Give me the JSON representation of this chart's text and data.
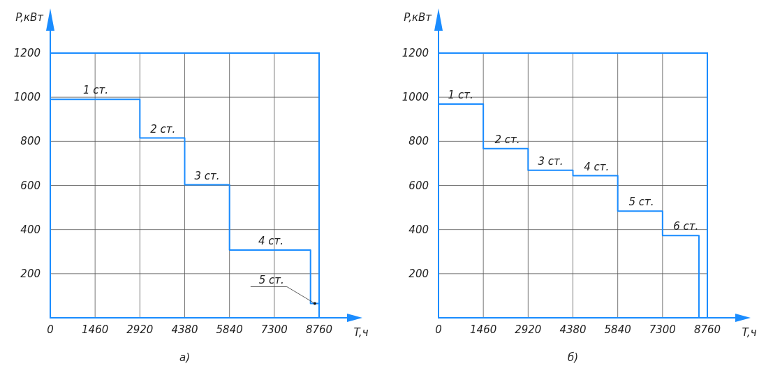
{
  "chart_data": [
    {
      "type": "step",
      "title": "а)",
      "xlabel": "T,ч",
      "ylabel": "P,кВт",
      "color": "#1a8cff",
      "grid": true,
      "x": [
        0,
        2920,
        4380,
        5840,
        8480,
        8760
      ],
      "values": [
        990,
        815,
        603,
        307,
        65,
        0
      ],
      "xlim": [
        0,
        8760
      ],
      "ylim": [
        0,
        1200
      ],
      "xticks": [
        0,
        1460,
        2920,
        4380,
        5840,
        7300,
        8760
      ],
      "yticks": [
        200,
        400,
        600,
        800,
        1000,
        1200
      ],
      "annotations": [
        {
          "text": "1 ст.",
          "x": 1480,
          "y": 990
        },
        {
          "text": "2 ст.",
          "x": 3670,
          "y": 815
        },
        {
          "text": "3 ст.",
          "x": 5110,
          "y": 603
        },
        {
          "text": "4 ст.",
          "x": 7190,
          "y": 307
        },
        {
          "text": "5 ст.",
          "x": 8620,
          "y": 65
        }
      ]
    },
    {
      "type": "step",
      "title": "б)",
      "xlabel": "T,ч",
      "ylabel": "P,кВт",
      "color": "#1a8cff",
      "grid": true,
      "x": [
        0,
        1460,
        2920,
        4380,
        5840,
        7300,
        8486
      ],
      "values": [
        969,
        767,
        669,
        644,
        484,
        373,
        0
      ],
      "xlim": [
        0,
        8760
      ],
      "ylim": [
        0,
        1200
      ],
      "xticks": [
        0,
        1460,
        2920,
        4380,
        5840,
        7300,
        8760
      ],
      "yticks": [
        200,
        400,
        600,
        800,
        1000,
        1200
      ],
      "annotations": [
        {
          "text": "1 ст.",
          "x": 720,
          "y": 969
        },
        {
          "text": "2 ст.",
          "x": 2240,
          "y": 767
        },
        {
          "text": "3 ст.",
          "x": 3650,
          "y": 669
        },
        {
          "text": "4 ст.",
          "x": 5150,
          "y": 644
        },
        {
          "text": "5 ст.",
          "x": 6610,
          "y": 484
        },
        {
          "text": "6 ст.",
          "x": 8060,
          "y": 373
        }
      ]
    }
  ]
}
